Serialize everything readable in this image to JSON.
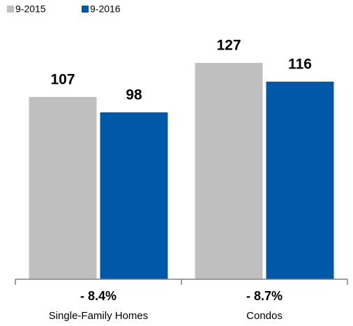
{
  "chart_data": {
    "type": "bar",
    "categories": [
      "Single-Family Homes",
      "Condos"
    ],
    "series": [
      {
        "name": "9-2015",
        "color": "#bfbfbf",
        "values": [
          107,
          127
        ]
      },
      {
        "name": "9-2016",
        "color": "#0058a8",
        "values": [
          98,
          116
        ]
      }
    ],
    "annotations": [
      "- 8.4%",
      "- 8.7%"
    ]
  }
}
